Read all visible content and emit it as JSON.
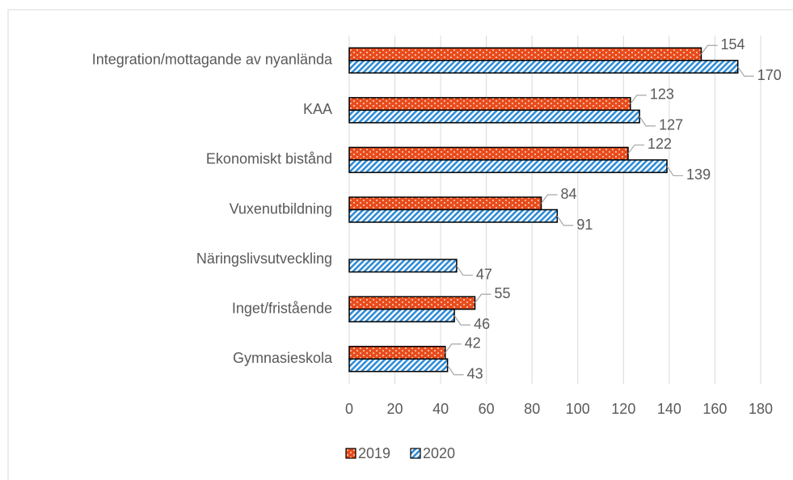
{
  "chart_data": {
    "type": "bar",
    "orientation": "horizontal",
    "categories": [
      "Integration/mottagande av nyanlända",
      "KAA",
      "Ekonomiskt bistånd",
      "Vuxenutbildning",
      "Näringslivsutveckling",
      "Inget/fristående",
      "Gymnasieskola"
    ],
    "series": [
      {
        "name": "2019",
        "color": "#e84c1c",
        "values": [
          154,
          123,
          122,
          84,
          null,
          55,
          42
        ]
      },
      {
        "name": "2020",
        "color": "#2e8bd6",
        "values": [
          170,
          127,
          139,
          91,
          47,
          46,
          43
        ]
      }
    ],
    "xlim": [
      0,
      180
    ],
    "xticks": [
      0,
      20,
      40,
      60,
      80,
      100,
      120,
      140,
      160,
      180
    ],
    "grid": true,
    "legend": "bottom"
  }
}
